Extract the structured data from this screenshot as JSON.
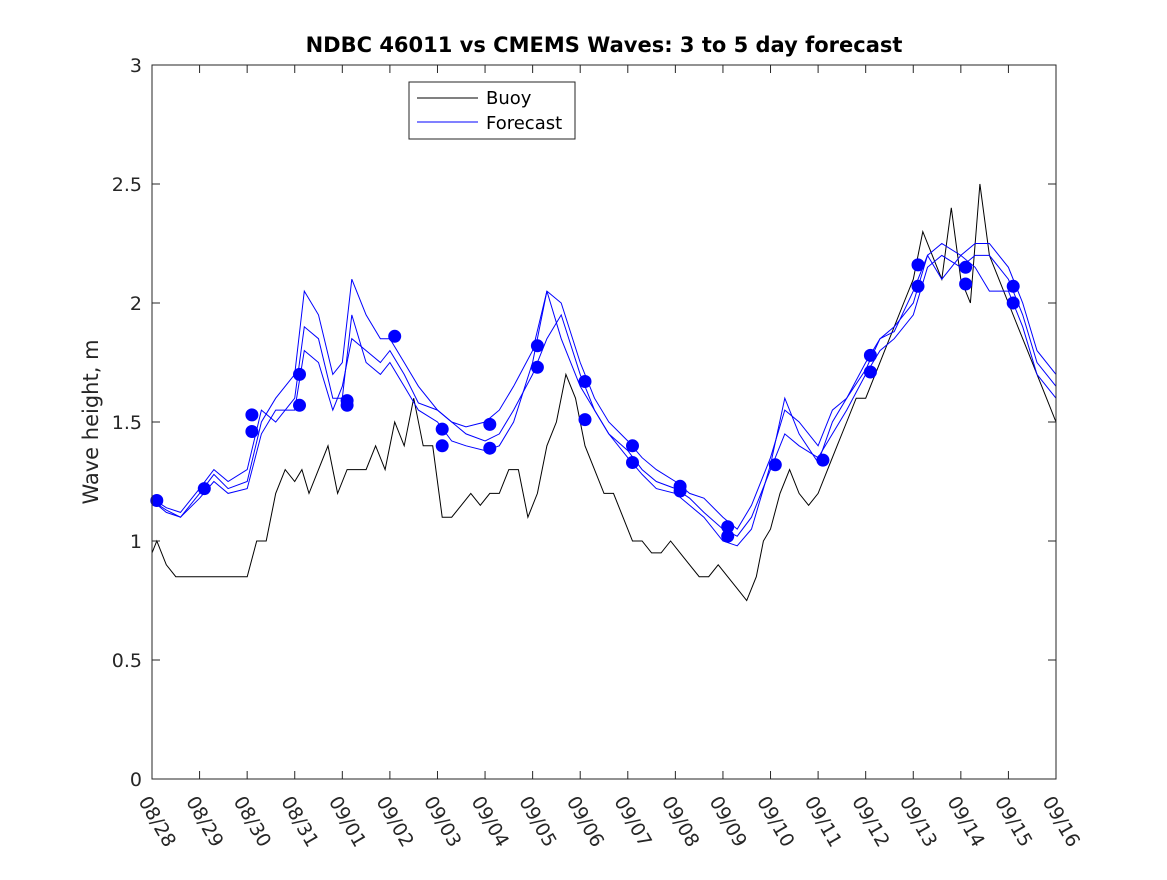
{
  "chart_data": {
    "type": "line",
    "title": "NDBC 46011 vs CMEMS Waves: 3 to 5 day forecast",
    "xlabel": "",
    "ylabel": "Wave height, m",
    "xlim": [
      0,
      19
    ],
    "ylim": [
      0,
      3
    ],
    "yticks": [
      0,
      0.5,
      1,
      1.5,
      2,
      2.5,
      3
    ],
    "ytick_labels": [
      "0",
      "0.5",
      "1",
      "1.5",
      "2",
      "2.5",
      "3"
    ],
    "xtick_positions": [
      0,
      1,
      2,
      3,
      4,
      5,
      6,
      7,
      8,
      9,
      10,
      11,
      12,
      13,
      14,
      15,
      16,
      17,
      18,
      19
    ],
    "xtick_labels": [
      "08/28",
      "08/29",
      "08/30",
      "08/31",
      "09/01",
      "09/02",
      "09/03",
      "09/04",
      "09/05",
      "09/06",
      "09/07",
      "09/08",
      "09/09",
      "09/10",
      "09/11",
      "09/12",
      "09/13",
      "09/14",
      "09/15",
      "09/16"
    ],
    "legend": {
      "location": "top-left",
      "entries": [
        {
          "label": "Buoy",
          "color": "#000000"
        },
        {
          "label": "Forecast",
          "color": "#0000ff"
        }
      ]
    },
    "series": [
      {
        "name": "Buoy",
        "color": "#000000",
        "x": [
          0,
          0.1,
          0.3,
          0.5,
          0.8,
          1.0,
          1.3,
          1.5,
          1.8,
          2.0,
          2.2,
          2.4,
          2.6,
          2.8,
          3.0,
          3.15,
          3.3,
          3.5,
          3.7,
          3.9,
          4.1,
          4.3,
          4.5,
          4.7,
          4.9,
          5.1,
          5.3,
          5.5,
          5.7,
          5.9,
          6.1,
          6.3,
          6.5,
          6.7,
          6.9,
          7.1,
          7.3,
          7.5,
          7.7,
          7.9,
          8.1,
          8.3,
          8.5,
          8.7,
          8.9,
          9.1,
          9.3,
          9.5,
          9.7,
          9.9,
          10.1,
          10.3,
          10.5,
          10.7,
          10.9,
          11.1,
          11.3,
          11.5,
          11.7,
          11.9,
          12.1,
          12.3,
          12.5,
          12.7,
          12.85,
          13.0,
          13.2,
          13.4,
          13.6,
          13.8,
          14.0,
          14.2,
          14.4,
          14.6,
          14.8,
          15.0,
          15.2,
          15.4,
          15.6,
          15.8,
          16.0,
          16.2,
          16.4,
          16.6,
          16.8,
          17.0,
          17.2,
          17.4,
          17.6,
          17.8,
          18.0,
          18.2,
          18.4,
          18.6,
          18.8,
          19.0
        ],
        "y": [
          0.95,
          1.0,
          0.9,
          0.85,
          0.85,
          0.85,
          0.85,
          0.85,
          0.85,
          0.85,
          1.0,
          1.0,
          1.2,
          1.3,
          1.25,
          1.3,
          1.2,
          1.3,
          1.4,
          1.2,
          1.3,
          1.3,
          1.3,
          1.4,
          1.3,
          1.5,
          1.4,
          1.6,
          1.4,
          1.4,
          1.1,
          1.1,
          1.15,
          1.2,
          1.15,
          1.2,
          1.2,
          1.3,
          1.3,
          1.1,
          1.2,
          1.4,
          1.5,
          1.7,
          1.6,
          1.4,
          1.3,
          1.2,
          1.2,
          1.1,
          1.0,
          1.0,
          0.95,
          0.95,
          1.0,
          0.95,
          0.9,
          0.85,
          0.85,
          0.9,
          0.85,
          0.8,
          0.75,
          0.85,
          1.0,
          1.05,
          1.2,
          1.3,
          1.2,
          1.15,
          1.2,
          1.3,
          1.4,
          1.5,
          1.6,
          1.6,
          1.7,
          1.8,
          1.9,
          2.0,
          2.1,
          2.3,
          2.2,
          2.1,
          2.4,
          2.1,
          2.0,
          2.5,
          2.2,
          2.1,
          2.0,
          1.9,
          1.8,
          1.7,
          1.6,
          1.5
        ]
      },
      {
        "name": "Forecast",
        "color": "#0000ff",
        "x": [
          0,
          0.3,
          0.6,
          1.0,
          1.3,
          1.6,
          2.0,
          2.3,
          2.6,
          3.0,
          3.2,
          3.5,
          3.8,
          4.0,
          4.2,
          4.5,
          4.8,
          5.0,
          5.3,
          5.6,
          6.0,
          6.3,
          6.6,
          7.0,
          7.3,
          7.6,
          8.0,
          8.3,
          8.6,
          9.0,
          9.3,
          9.6,
          10.0,
          10.3,
          10.6,
          11.0,
          11.3,
          11.6,
          12.0,
          12.3,
          12.6,
          13.0,
          13.3,
          13.6,
          14.0,
          14.3,
          14.6,
          15.0,
          15.3,
          15.6,
          16.0,
          16.3,
          16.6,
          17.0,
          17.3,
          17.6,
          18.0,
          18.3,
          18.6,
          19.0
        ],
        "y": [
          1.17,
          1.12,
          1.1,
          1.18,
          1.25,
          1.2,
          1.22,
          1.45,
          1.55,
          1.55,
          1.8,
          1.75,
          1.55,
          1.65,
          1.85,
          1.8,
          1.75,
          1.8,
          1.7,
          1.58,
          1.55,
          1.5,
          1.45,
          1.42,
          1.45,
          1.55,
          1.7,
          1.85,
          1.95,
          1.7,
          1.55,
          1.45,
          1.38,
          1.3,
          1.25,
          1.22,
          1.18,
          1.12,
          1.05,
          1.02,
          1.1,
          1.3,
          1.45,
          1.4,
          1.35,
          1.45,
          1.55,
          1.7,
          1.8,
          1.85,
          1.95,
          2.15,
          2.2,
          2.15,
          2.2,
          2.2,
          2.1,
          1.95,
          1.75,
          1.65
        ]
      },
      {
        "name": "Forecast",
        "color": "#0000ff",
        "x": [
          0,
          0.3,
          0.6,
          1.0,
          1.3,
          1.6,
          2.0,
          2.3,
          2.6,
          3.0,
          3.2,
          3.5,
          3.8,
          4.0,
          4.2,
          4.5,
          4.8,
          5.0,
          5.3,
          5.6,
          6.0,
          6.3,
          6.6,
          7.0,
          7.3,
          7.6,
          8.0,
          8.3,
          8.6,
          9.0,
          9.3,
          9.6,
          10.0,
          10.3,
          10.6,
          11.0,
          11.3,
          11.6,
          12.0,
          12.3,
          12.6,
          13.0,
          13.3,
          13.6,
          14.0,
          14.3,
          14.6,
          15.0,
          15.3,
          15.6,
          16.0,
          16.3,
          16.6,
          17.0,
          17.3,
          17.6,
          18.0,
          18.3,
          18.6,
          19.0
        ],
        "y": [
          1.17,
          1.13,
          1.1,
          1.2,
          1.28,
          1.22,
          1.25,
          1.5,
          1.6,
          1.7,
          2.05,
          1.95,
          1.7,
          1.75,
          2.1,
          1.95,
          1.85,
          1.85,
          1.75,
          1.65,
          1.55,
          1.5,
          1.48,
          1.5,
          1.55,
          1.65,
          1.8,
          2.05,
          2.0,
          1.75,
          1.6,
          1.5,
          1.42,
          1.35,
          1.3,
          1.25,
          1.2,
          1.18,
          1.1,
          1.05,
          1.15,
          1.35,
          1.55,
          1.5,
          1.4,
          1.55,
          1.6,
          1.75,
          1.85,
          1.9,
          2.0,
          2.2,
          2.25,
          2.2,
          2.25,
          2.25,
          2.15,
          2.0,
          1.8,
          1.7
        ]
      },
      {
        "name": "Forecast",
        "color": "#0000ff",
        "x": [
          0,
          0.3,
          0.6,
          1.0,
          1.3,
          1.6,
          2.0,
          2.3,
          2.6,
          3.0,
          3.2,
          3.5,
          3.8,
          4.0,
          4.2,
          4.5,
          4.8,
          5.0,
          5.3,
          5.6,
          6.0,
          6.3,
          6.6,
          7.0,
          7.3,
          7.6,
          8.0,
          8.3,
          8.6,
          9.0,
          9.3,
          9.6,
          10.0,
          10.3,
          10.6,
          11.0,
          11.3,
          11.6,
          12.0,
          12.3,
          12.6,
          13.0,
          13.3,
          13.6,
          14.0,
          14.3,
          14.6,
          15.0,
          15.3,
          15.6,
          16.0,
          16.3,
          16.6,
          17.0,
          17.3,
          17.6,
          18.0,
          18.3,
          18.6,
          19.0
        ],
        "y": [
          1.18,
          1.14,
          1.12,
          1.22,
          1.3,
          1.25,
          1.3,
          1.55,
          1.5,
          1.6,
          1.9,
          1.85,
          1.6,
          1.6,
          1.95,
          1.75,
          1.7,
          1.75,
          1.65,
          1.55,
          1.5,
          1.42,
          1.4,
          1.38,
          1.4,
          1.5,
          1.75,
          2.05,
          1.85,
          1.65,
          1.55,
          1.45,
          1.35,
          1.28,
          1.22,
          1.2,
          1.15,
          1.1,
          1.0,
          0.98,
          1.05,
          1.32,
          1.6,
          1.45,
          1.33,
          1.5,
          1.6,
          1.72,
          1.85,
          1.88,
          2.05,
          2.2,
          2.1,
          2.2,
          2.15,
          2.05,
          2.05,
          1.9,
          1.7,
          1.6
        ]
      }
    ],
    "markers": {
      "name": "Forecast start points",
      "color": "#0000ff",
      "x": [
        0.1,
        1.1,
        2.1,
        2.1,
        3.1,
        3.1,
        4.1,
        4.1,
        5.1,
        6.1,
        6.1,
        7.1,
        7.1,
        8.1,
        8.1,
        9.1,
        9.1,
        10.1,
        10.1,
        11.1,
        11.1,
        12.1,
        12.1,
        13.1,
        14.1,
        15.1,
        15.1,
        16.1,
        16.1,
        17.1,
        17.1,
        18.1,
        18.1
      ],
      "y": [
        1.17,
        1.22,
        1.53,
        1.46,
        1.7,
        1.57,
        1.59,
        1.57,
        1.86,
        1.47,
        1.4,
        1.49,
        1.39,
        1.82,
        1.73,
        1.67,
        1.51,
        1.4,
        1.33,
        1.23,
        1.21,
        1.06,
        1.02,
        1.32,
        1.34,
        1.78,
        1.71,
        2.16,
        2.07,
        2.15,
        2.08,
        2.07,
        2.0
      ]
    }
  }
}
